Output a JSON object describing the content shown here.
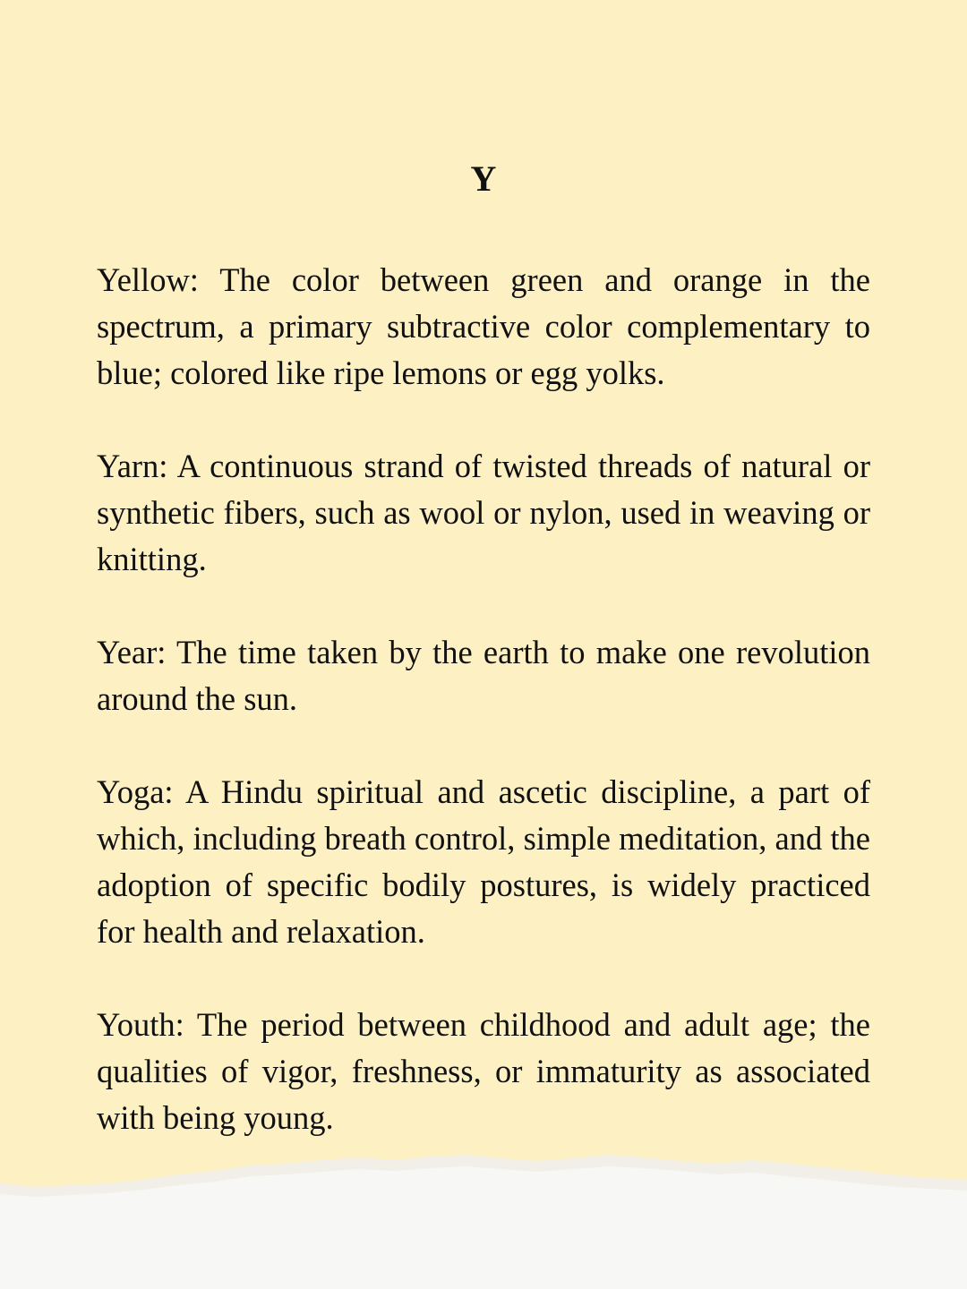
{
  "heading": "Y",
  "entries": [
    "Yellow: The color between green and orange in the spectrum, a primary subtractive color complementary to blue; colored like ripe lemons or egg yolks.",
    "Yarn: A continuous strand of twisted threads of natural or synthetic fibers, such as wool or nylon, used in weaving or knitting.",
    "Year: The time taken by the earth to make one revolution around the sun.",
    "Yoga: A Hindu spiritual and ascetic discipline, a part of which, including breath control, simple meditation, and the adoption of specific bodily postures, is widely practiced for health and relaxation.",
    "Youth: The period between childhood and adult age; the qualities of vigor, freshness, or immaturity as associated with being young."
  ],
  "colors": {
    "paper": "#fdf1c4",
    "torn_edge": "#f7f7f6",
    "text": "#111111"
  }
}
